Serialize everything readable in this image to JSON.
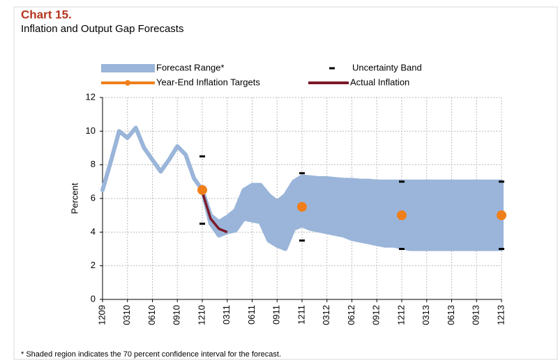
{
  "chart_data": {
    "type": "line",
    "title": "Chart 15.",
    "subtitle": "Inflation and Output Gap Forecasts",
    "ylabel": "Percent",
    "footnote": "* Shaded region indicates the 70 percent confidence interval for the forecast.",
    "categories": [
      "1209",
      null,
      null,
      "0310",
      null,
      null,
      "0610",
      null,
      null,
      "0910",
      null,
      null,
      "1210",
      null,
      null,
      "0311",
      null,
      null,
      "0611",
      null,
      null,
      "0911",
      null,
      null,
      "1211",
      null,
      null,
      "0312",
      null,
      null,
      "0612",
      null,
      null,
      "0912",
      null,
      null,
      "1212",
      null,
      null,
      "0313",
      null,
      null,
      "0613",
      null,
      null,
      "0913",
      null,
      null,
      "1213"
    ],
    "ylim": [
      0,
      12
    ],
    "yticks": [
      0,
      2,
      4,
      6,
      8,
      10,
      12
    ],
    "grid": true,
    "series": [
      {
        "name": "Forecast Range*",
        "color": "#9ab5d9",
        "lower": [
          6.5,
          8.2,
          10.0,
          9.6,
          10.2,
          9.0,
          8.3,
          7.6,
          8.3,
          9.1,
          8.6,
          7.2,
          6.5,
          4.5,
          3.8,
          4.0,
          4.1,
          4.8,
          4.7,
          4.6,
          3.5,
          3.2,
          3.0,
          4.2,
          4.4,
          4.2,
          4.1,
          4.0,
          3.9,
          3.8,
          3.6,
          3.5,
          3.4,
          3.3,
          3.2,
          3.2,
          3.1,
          3.0,
          3.0,
          3.0,
          3.0,
          3.0,
          3.0,
          3.0,
          3.0,
          3.0,
          3.0,
          3.0,
          3.0
        ],
        "upper": [
          6.5,
          8.2,
          10.0,
          9.6,
          10.2,
          9.0,
          8.3,
          7.6,
          8.3,
          9.1,
          8.6,
          7.2,
          6.5,
          5.0,
          4.6,
          4.9,
          5.3,
          6.5,
          6.8,
          6.8,
          6.2,
          5.8,
          6.2,
          7.0,
          7.3,
          7.25,
          7.2,
          7.2,
          7.15,
          7.1,
          7.1,
          7.05,
          7.05,
          7.0,
          7.0,
          7.0,
          7.0,
          7.0,
          7.0,
          7.0,
          7.0,
          7.0,
          7.0,
          7.0,
          7.0,
          7.0,
          7.0,
          7.0,
          7.0
        ]
      },
      {
        "name": "Uncertainty Band",
        "color": "#000000",
        "upper": [
          null,
          null,
          null,
          null,
          null,
          null,
          null,
          null,
          null,
          null,
          null,
          null,
          8.5,
          null,
          null,
          null,
          null,
          null,
          null,
          null,
          null,
          null,
          null,
          null,
          7.5,
          null,
          null,
          null,
          null,
          null,
          null,
          null,
          null,
          null,
          null,
          null,
          7.0,
          null,
          null,
          null,
          null,
          null,
          null,
          null,
          null,
          null,
          null,
          null,
          7.0
        ],
        "lower": [
          null,
          null,
          null,
          null,
          null,
          null,
          null,
          null,
          null,
          null,
          null,
          null,
          4.5,
          null,
          null,
          null,
          null,
          null,
          null,
          null,
          null,
          null,
          null,
          null,
          3.5,
          null,
          null,
          null,
          null,
          null,
          null,
          null,
          null,
          null,
          null,
          null,
          3.0,
          null,
          null,
          null,
          null,
          null,
          null,
          null,
          null,
          null,
          null,
          null,
          3.0
        ]
      },
      {
        "name": "Year-End Inflation Targets",
        "color": "#f07f1a",
        "values": [
          null,
          null,
          null,
          null,
          null,
          null,
          null,
          null,
          null,
          null,
          null,
          null,
          6.5,
          null,
          null,
          null,
          null,
          null,
          null,
          null,
          null,
          null,
          null,
          null,
          5.5,
          null,
          null,
          null,
          null,
          null,
          null,
          null,
          null,
          null,
          null,
          null,
          5.0,
          null,
          null,
          null,
          null,
          null,
          null,
          null,
          null,
          null,
          null,
          null,
          5.0
        ]
      },
      {
        "name": "Actual Inflation",
        "color": "#7b1a2a",
        "values": [
          null,
          null,
          null,
          null,
          null,
          null,
          null,
          null,
          null,
          null,
          null,
          null,
          6.4,
          4.8,
          4.2,
          4.0,
          null,
          null,
          null,
          null,
          null,
          null,
          null,
          null,
          null,
          null,
          null,
          null,
          null,
          null,
          null,
          null,
          null,
          null,
          null,
          null,
          null,
          null,
          null,
          null,
          null,
          null,
          null,
          null,
          null,
          null,
          null,
          null,
          null
        ]
      }
    ]
  }
}
